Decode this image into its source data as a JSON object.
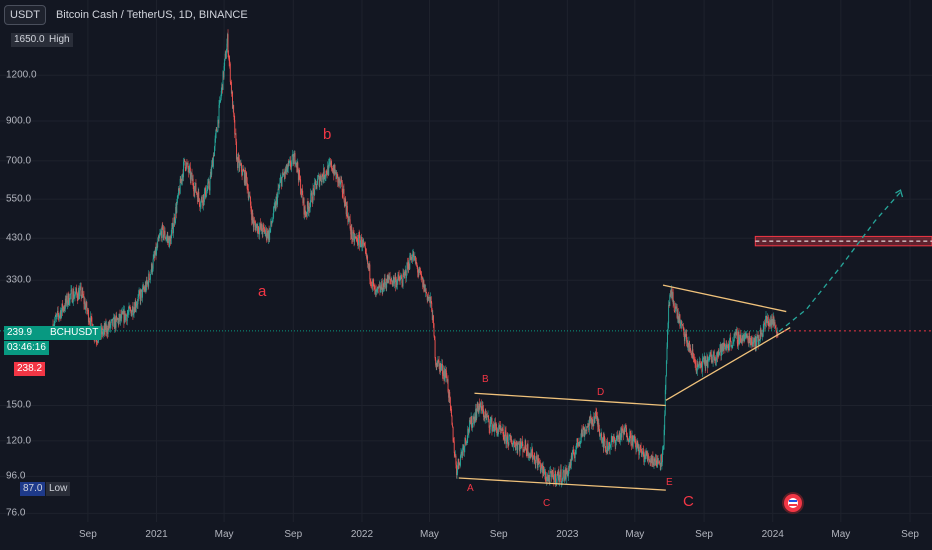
{
  "header": {
    "currency_badge": "USDT",
    "symbol_title": "Bitcoin Cash / TetherUS, 1D, BINANCE"
  },
  "price_scale": {
    "high_value": "1650.0",
    "high_label": "High",
    "low_value": "87.0",
    "low_label": "Low",
    "last_price": "239.9",
    "last_symbol": "BCHUSDT",
    "countdown": "03:46:16",
    "prev_price": "238.2"
  },
  "colors": {
    "background": "#131722",
    "up": "#26a69a",
    "down": "#ef5350",
    "trendline": "#f0c27b",
    "wave_label": "#f23645",
    "last_price": "#089981",
    "projection": "#26a69a"
  },
  "wave_labels": {
    "a": "a",
    "b": "b",
    "A": "A",
    "B": "B",
    "C_small": "C",
    "D": "D",
    "E": "E",
    "C_big": "C"
  },
  "chart_data": {
    "type": "candlestick",
    "scale": "log",
    "y_tick_labels": [
      "1200.0",
      "900.0",
      "700.0",
      "550.0",
      "430.0",
      "330.0",
      "150.0",
      "120.0",
      "96.0",
      "76.0"
    ],
    "y_ticks": [
      1200,
      900,
      700,
      550,
      430,
      330,
      150,
      120,
      96,
      76
    ],
    "x_tick_labels": [
      "Sep",
      "2021",
      "May",
      "Sep",
      "2022",
      "May",
      "Sep",
      "2023",
      "May",
      "Sep",
      "2024",
      "May",
      "Sep"
    ],
    "x_ticks": [
      "2020-09-01",
      "2021-01-01",
      "2021-05-01",
      "2021-09-01",
      "2022-01-01",
      "2022-05-01",
      "2022-09-01",
      "2023-01-01",
      "2023-05-01",
      "2023-09-01",
      "2024-01-01",
      "2024-05-01",
      "2024-09-01"
    ],
    "xlim": [
      "2020-06-15",
      "2024-10-10"
    ],
    "ylim": [
      72,
      1700
    ],
    "price_path": [
      [
        "2020-07-01",
        250
      ],
      [
        "2020-08-01",
        300
      ],
      [
        "2020-08-20",
        305
      ],
      [
        "2020-09-15",
        230
      ],
      [
        "2020-10-15",
        250
      ],
      [
        "2020-11-15",
        270
      ],
      [
        "2020-12-15",
        320
      ],
      [
        "2021-01-10",
        450
      ],
      [
        "2021-01-25",
        420
      ],
      [
        "2021-02-20",
        700
      ],
      [
        "2021-03-20",
        540
      ],
      [
        "2021-04-05",
        600
      ],
      [
        "2021-04-20",
        900
      ],
      [
        "2021-05-07",
        1500
      ],
      [
        "2021-05-12",
        1200
      ],
      [
        "2021-05-24",
        700
      ],
      [
        "2021-06-10",
        620
      ],
      [
        "2021-06-22",
        470
      ],
      [
        "2021-07-20",
        440
      ],
      [
        "2021-08-10",
        620
      ],
      [
        "2021-09-05",
        720
      ],
      [
        "2021-09-22",
        500
      ],
      [
        "2021-10-15",
        620
      ],
      [
        "2021-11-08",
        680
      ],
      [
        "2021-11-28",
        580
      ],
      [
        "2021-12-15",
        430
      ],
      [
        "2022-01-01",
        420
      ],
      [
        "2022-01-25",
        300
      ],
      [
        "2022-02-15",
        330
      ],
      [
        "2022-03-15",
        330
      ],
      [
        "2022-03-31",
        390
      ],
      [
        "2022-04-20",
        320
      ],
      [
        "2022-05-05",
        280
      ],
      [
        "2022-05-12",
        200
      ],
      [
        "2022-06-01",
        180
      ],
      [
        "2022-06-18",
        100
      ],
      [
        "2022-07-10",
        130
      ],
      [
        "2022-07-28",
        150
      ],
      [
        "2022-08-15",
        135
      ],
      [
        "2022-09-20",
        120
      ],
      [
        "2022-10-20",
        115
      ],
      [
        "2022-11-10",
        105
      ],
      [
        "2022-11-25",
        95
      ],
      [
        "2022-12-30",
        97
      ],
      [
        "2023-01-25",
        125
      ],
      [
        "2023-02-20",
        140
      ],
      [
        "2023-03-10",
        115
      ],
      [
        "2023-04-15",
        128
      ],
      [
        "2023-05-15",
        110
      ],
      [
        "2023-06-12",
        105
      ],
      [
        "2023-06-20",
        110
      ],
      [
        "2023-06-30",
        280
      ],
      [
        "2023-07-05",
        300
      ],
      [
        "2023-07-25",
        240
      ],
      [
        "2023-08-20",
        190
      ],
      [
        "2023-09-10",
        200
      ],
      [
        "2023-10-05",
        215
      ],
      [
        "2023-10-28",
        230
      ],
      [
        "2023-11-15",
        230
      ],
      [
        "2023-12-05",
        225
      ],
      [
        "2023-12-20",
        255
      ],
      [
        "2024-01-01",
        255
      ],
      [
        "2024-01-10",
        239.9
      ]
    ],
    "last_price": 239.9,
    "session_high": 1650.0,
    "session_low": 87.0,
    "trendlines": [
      {
        "start": [
          "2022-06-22",
          95
        ],
        "end": [
          "2023-06-25",
          88
        ]
      },
      {
        "start": [
          "2022-07-20",
          162
        ],
        "end": [
          "2023-06-25",
          150
        ]
      },
      {
        "start": [
          "2023-06-25",
          155
        ],
        "end": [
          "2024-02-01",
          245
        ]
      },
      {
        "start": [
          "2023-06-20",
          320
        ],
        "end": [
          "2024-01-25",
          271
        ]
      }
    ],
    "projection": [
      [
        "2024-01-12",
        239
      ],
      [
        "2024-03-01",
        275
      ],
      [
        "2024-05-01",
        360
      ],
      [
        "2024-07-01",
        480
      ],
      [
        "2024-08-15",
        575
      ]
    ],
    "resistance_zone": [
      410,
      435
    ]
  }
}
